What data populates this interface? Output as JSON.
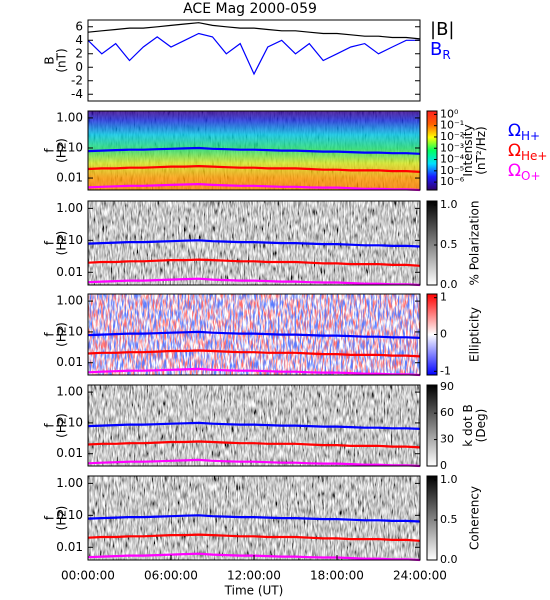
{
  "chart_data": [
    {
      "type": "line",
      "title": "ACE Mag 2000-059",
      "ylabel": [
        "B",
        "(nT)"
      ],
      "x": [
        0,
        1,
        2,
        3,
        4,
        5,
        6,
        7,
        8,
        9,
        10,
        11,
        12,
        13,
        14,
        15,
        16,
        17,
        18,
        19,
        20,
        21,
        22,
        23,
        24
      ],
      "xlim": [
        0,
        24
      ],
      "ylim": [
        -5,
        7
      ],
      "yticks": [
        -4,
        -2,
        0,
        2,
        4,
        6
      ],
      "legend": true,
      "series": [
        {
          "name": "|B|",
          "color": "#000000",
          "values": [
            5.2,
            5.4,
            5.6,
            5.8,
            5.8,
            6.0,
            6.2,
            6.4,
            6.6,
            6.2,
            6.0,
            5.8,
            5.8,
            5.6,
            5.4,
            5.4,
            5.2,
            5.0,
            5.0,
            4.8,
            4.6,
            4.6,
            4.4,
            4.4,
            4.2
          ]
        },
        {
          "name": "B",
          "subscript": "R",
          "color": "#0000ff",
          "values": [
            4,
            2,
            3.5,
            1,
            3,
            4.5,
            3,
            4,
            5,
            4.5,
            2,
            3.5,
            -1,
            3,
            4,
            2,
            3.5,
            1,
            2,
            3,
            3.5,
            2,
            3,
            4,
            4
          ]
        }
      ]
    },
    {
      "type": "spectrogram",
      "background": "intensity",
      "ylabel": [
        "f",
        "(Hz)"
      ],
      "ylog": true,
      "x": [
        0,
        1,
        2,
        3,
        4,
        5,
        6,
        7,
        8,
        9,
        10,
        11,
        12,
        13,
        14,
        15,
        16,
        17,
        18,
        19,
        20,
        21,
        22,
        23,
        24
      ],
      "xlim": [
        0,
        24
      ],
      "ylim": [
        0.004,
        1.7
      ],
      "yticks": [
        {
          "value": 1,
          "label": "1.00"
        },
        {
          "value": 0.1,
          "label": "0.10"
        },
        {
          "value": 0.01,
          "label": "0.01"
        }
      ],
      "clabel": [
        "Intensity",
        "(nT²/Hz)"
      ],
      "clog": true,
      "clim": [
        2e-07,
        2
      ],
      "cticks": [
        {
          "value": 1,
          "label": "10⁰"
        },
        {
          "value": 0.1,
          "label": "10⁻¹"
        },
        {
          "value": 0.01,
          "label": "10⁻²"
        },
        {
          "value": 0.001,
          "label": "10⁻³"
        },
        {
          "value": 0.0001,
          "label": "10⁻⁴"
        },
        {
          "value": 1e-05,
          "label": "10⁻⁵"
        },
        {
          "value": 1e-06,
          "label": "10⁻⁶"
        }
      ],
      "colormap": [
        "#30006a",
        "#1a1aff",
        "#00e0ff",
        "#00ff60",
        "#ffff00",
        "#ff6000",
        "#ff2020"
      ],
      "legend": true,
      "series": [
        {
          "name": "Ω",
          "subscript": "H+",
          "color": "#0000ff",
          "values": [
            0.079,
            0.082,
            0.085,
            0.088,
            0.088,
            0.091,
            0.094,
            0.097,
            0.1,
            0.094,
            0.091,
            0.088,
            0.088,
            0.085,
            0.082,
            0.082,
            0.079,
            0.076,
            0.076,
            0.073,
            0.07,
            0.07,
            0.067,
            0.067,
            0.064
          ]
        },
        {
          "name": "Ω",
          "subscript": "He+",
          "color": "#ff0000",
          "values": [
            0.02,
            0.021,
            0.021,
            0.022,
            0.022,
            0.023,
            0.024,
            0.024,
            0.025,
            0.024,
            0.023,
            0.022,
            0.022,
            0.021,
            0.021,
            0.021,
            0.02,
            0.019,
            0.019,
            0.018,
            0.018,
            0.018,
            0.017,
            0.017,
            0.016
          ]
        },
        {
          "name": "Ω",
          "subscript": "O+",
          "color": "#ff00ff",
          "values": [
            0.0049,
            0.0051,
            0.0053,
            0.0055,
            0.0055,
            0.0057,
            0.0059,
            0.0061,
            0.0063,
            0.0059,
            0.0057,
            0.0055,
            0.0055,
            0.0053,
            0.0051,
            0.0051,
            0.0049,
            0.0048,
            0.0048,
            0.0046,
            0.0044,
            0.0044,
            0.0042,
            0.0042,
            0.004
          ]
        }
      ]
    },
    {
      "type": "spectrogram",
      "background": "gray",
      "ylabel": [
        "f",
        "(Hz)"
      ],
      "ylog": true,
      "x": [
        0,
        1,
        2,
        3,
        4,
        5,
        6,
        7,
        8,
        9,
        10,
        11,
        12,
        13,
        14,
        15,
        16,
        17,
        18,
        19,
        20,
        21,
        22,
        23,
        24
      ],
      "xlim": [
        0,
        24
      ],
      "ylim": [
        0.004,
        1.7
      ],
      "yticks": [
        {
          "value": 1,
          "label": "1.00"
        },
        {
          "value": 0.1,
          "label": "0.10"
        },
        {
          "value": 0.01,
          "label": "0.01"
        }
      ],
      "clabel": [
        "% Polarization"
      ],
      "clog": false,
      "clim": [
        0,
        1.05
      ],
      "cticks": [
        {
          "value": 0,
          "label": "0.0"
        },
        {
          "value": 0.5,
          "label": "0.5"
        },
        {
          "value": 1,
          "label": "1.0"
        }
      ],
      "colormap": [
        "#ffffff",
        "#000000"
      ],
      "series": [
        {
          "color": "#0000ff",
          "values": [
            0.079,
            0.082,
            0.085,
            0.088,
            0.088,
            0.091,
            0.094,
            0.097,
            0.1,
            0.094,
            0.091,
            0.088,
            0.088,
            0.085,
            0.082,
            0.082,
            0.079,
            0.076,
            0.076,
            0.073,
            0.07,
            0.07,
            0.067,
            0.067,
            0.064
          ]
        },
        {
          "color": "#ff0000",
          "values": [
            0.02,
            0.021,
            0.021,
            0.022,
            0.022,
            0.023,
            0.024,
            0.024,
            0.025,
            0.024,
            0.023,
            0.022,
            0.022,
            0.021,
            0.021,
            0.021,
            0.02,
            0.019,
            0.019,
            0.018,
            0.018,
            0.018,
            0.017,
            0.017,
            0.016
          ]
        },
        {
          "color": "#ff00ff",
          "values": [
            0.0049,
            0.0051,
            0.0053,
            0.0055,
            0.0055,
            0.0057,
            0.0059,
            0.0061,
            0.0063,
            0.0059,
            0.0057,
            0.0055,
            0.0055,
            0.0053,
            0.0051,
            0.0051,
            0.0049,
            0.0048,
            0.0048,
            0.0046,
            0.0044,
            0.0044,
            0.0042,
            0.0042,
            0.004
          ]
        }
      ]
    },
    {
      "type": "spectrogram",
      "background": "redblue",
      "ylabel": [
        "f",
        "(Hz)"
      ],
      "ylog": true,
      "x": [
        0,
        1,
        2,
        3,
        4,
        5,
        6,
        7,
        8,
        9,
        10,
        11,
        12,
        13,
        14,
        15,
        16,
        17,
        18,
        19,
        20,
        21,
        22,
        23,
        24
      ],
      "xlim": [
        0,
        24
      ],
      "ylim": [
        0.004,
        1.7
      ],
      "yticks": [
        {
          "value": 1,
          "label": "1.00"
        },
        {
          "value": 0.1,
          "label": "0.10"
        },
        {
          "value": 0.01,
          "label": "0.01"
        }
      ],
      "clabel": [
        "Ellipticity"
      ],
      "clog": false,
      "clim": [
        -1.1,
        1.1
      ],
      "cticks": [
        -1,
        0,
        1
      ],
      "colormap": [
        "#0000ff",
        "#ffffff",
        "#ff0000"
      ],
      "series": [
        {
          "color": "#0000ff",
          "values": [
            0.079,
            0.082,
            0.085,
            0.088,
            0.088,
            0.091,
            0.094,
            0.097,
            0.1,
            0.094,
            0.091,
            0.088,
            0.088,
            0.085,
            0.082,
            0.082,
            0.079,
            0.076,
            0.076,
            0.073,
            0.07,
            0.07,
            0.067,
            0.067,
            0.064
          ]
        },
        {
          "color": "#ff0000",
          "values": [
            0.02,
            0.021,
            0.021,
            0.022,
            0.022,
            0.023,
            0.024,
            0.024,
            0.025,
            0.024,
            0.023,
            0.022,
            0.022,
            0.021,
            0.021,
            0.021,
            0.02,
            0.019,
            0.019,
            0.018,
            0.018,
            0.018,
            0.017,
            0.017,
            0.016
          ]
        },
        {
          "color": "#ff00ff",
          "values": [
            0.0049,
            0.0051,
            0.0053,
            0.0055,
            0.0055,
            0.0057,
            0.0059,
            0.0061,
            0.0063,
            0.0059,
            0.0057,
            0.0055,
            0.0055,
            0.0053,
            0.0051,
            0.0051,
            0.0049,
            0.0048,
            0.0048,
            0.0046,
            0.0044,
            0.0044,
            0.0042,
            0.0042,
            0.004
          ]
        }
      ]
    },
    {
      "type": "spectrogram",
      "background": "gray",
      "ylabel": [
        "f",
        "(Hz)"
      ],
      "ylog": true,
      "x": [
        0,
        1,
        2,
        3,
        4,
        5,
        6,
        7,
        8,
        9,
        10,
        11,
        12,
        13,
        14,
        15,
        16,
        17,
        18,
        19,
        20,
        21,
        22,
        23,
        24
      ],
      "xlim": [
        0,
        24
      ],
      "ylim": [
        0.004,
        1.7
      ],
      "yticks": [
        {
          "value": 1,
          "label": "1.00"
        },
        {
          "value": 0.1,
          "label": "0.10"
        },
        {
          "value": 0.01,
          "label": "0.01"
        }
      ],
      "clabel": [
        "k dot B",
        "(Deg)"
      ],
      "clog": false,
      "clim": [
        0,
        92
      ],
      "cticks": [
        0,
        30,
        60,
        90
      ],
      "colormap": [
        "#ffffff",
        "#000000"
      ],
      "series": [
        {
          "color": "#0000ff",
          "values": [
            0.079,
            0.082,
            0.085,
            0.088,
            0.088,
            0.091,
            0.094,
            0.097,
            0.1,
            0.094,
            0.091,
            0.088,
            0.088,
            0.085,
            0.082,
            0.082,
            0.079,
            0.076,
            0.076,
            0.073,
            0.07,
            0.07,
            0.067,
            0.067,
            0.064
          ]
        },
        {
          "color": "#ff0000",
          "values": [
            0.02,
            0.021,
            0.021,
            0.022,
            0.022,
            0.023,
            0.024,
            0.024,
            0.025,
            0.024,
            0.023,
            0.022,
            0.022,
            0.021,
            0.021,
            0.021,
            0.02,
            0.019,
            0.019,
            0.018,
            0.018,
            0.018,
            0.017,
            0.017,
            0.016
          ]
        },
        {
          "color": "#ff00ff",
          "values": [
            0.0049,
            0.0051,
            0.0053,
            0.0055,
            0.0055,
            0.0057,
            0.0059,
            0.0061,
            0.0063,
            0.0059,
            0.0057,
            0.0055,
            0.0055,
            0.0053,
            0.0051,
            0.0051,
            0.0049,
            0.0048,
            0.0048,
            0.0046,
            0.0044,
            0.0044,
            0.0042,
            0.0042,
            0.004
          ]
        }
      ]
    },
    {
      "type": "spectrogram",
      "background": "gray",
      "ylabel": [
        "f",
        "(Hz)"
      ],
      "ylog": true,
      "x": [
        0,
        1,
        2,
        3,
        4,
        5,
        6,
        7,
        8,
        9,
        10,
        11,
        12,
        13,
        14,
        15,
        16,
        17,
        18,
        19,
        20,
        21,
        22,
        23,
        24
      ],
      "xlim": [
        0,
        24
      ],
      "ylim": [
        0.004,
        1.7
      ],
      "yticks": [
        {
          "value": 1,
          "label": "1.00"
        },
        {
          "value": 0.1,
          "label": "0.10"
        },
        {
          "value": 0.01,
          "label": "0.01"
        }
      ],
      "xticks": [
        {
          "value": 0,
          "label": "00:00:00"
        },
        {
          "value": 6,
          "label": "06:00:00"
        },
        {
          "value": 12,
          "label": "12:00:00"
        },
        {
          "value": 18,
          "label": "18:00:00"
        },
        {
          "value": 24,
          "label": "24:00:00"
        }
      ],
      "xlabel": "Time (UT)",
      "clabel": [
        "Coherency"
      ],
      "clog": false,
      "clim": [
        0,
        1.05
      ],
      "cticks": [
        {
          "value": 0,
          "label": "0.0"
        },
        {
          "value": 0.5,
          "label": "0.5"
        },
        {
          "value": 1,
          "label": "1.0"
        }
      ],
      "colormap": [
        "#ffffff",
        "#000000"
      ],
      "series": [
        {
          "color": "#0000ff",
          "values": [
            0.079,
            0.082,
            0.085,
            0.088,
            0.088,
            0.091,
            0.094,
            0.097,
            0.1,
            0.094,
            0.091,
            0.088,
            0.088,
            0.085,
            0.082,
            0.082,
            0.079,
            0.076,
            0.076,
            0.073,
            0.07,
            0.07,
            0.067,
            0.067,
            0.064
          ]
        },
        {
          "color": "#ff0000",
          "values": [
            0.02,
            0.021,
            0.021,
            0.022,
            0.022,
            0.023,
            0.024,
            0.024,
            0.025,
            0.024,
            0.023,
            0.022,
            0.022,
            0.021,
            0.021,
            0.021,
            0.02,
            0.019,
            0.019,
            0.018,
            0.018,
            0.018,
            0.017,
            0.017,
            0.016
          ]
        },
        {
          "color": "#ff00ff",
          "values": [
            0.0049,
            0.0051,
            0.0053,
            0.0055,
            0.0055,
            0.0057,
            0.0059,
            0.0061,
            0.0063,
            0.0059,
            0.0057,
            0.0055,
            0.0055,
            0.0053,
            0.0051,
            0.0051,
            0.0049,
            0.0048,
            0.0048,
            0.0046,
            0.0044,
            0.0044,
            0.0042,
            0.0042,
            0.004
          ]
        }
      ]
    }
  ]
}
